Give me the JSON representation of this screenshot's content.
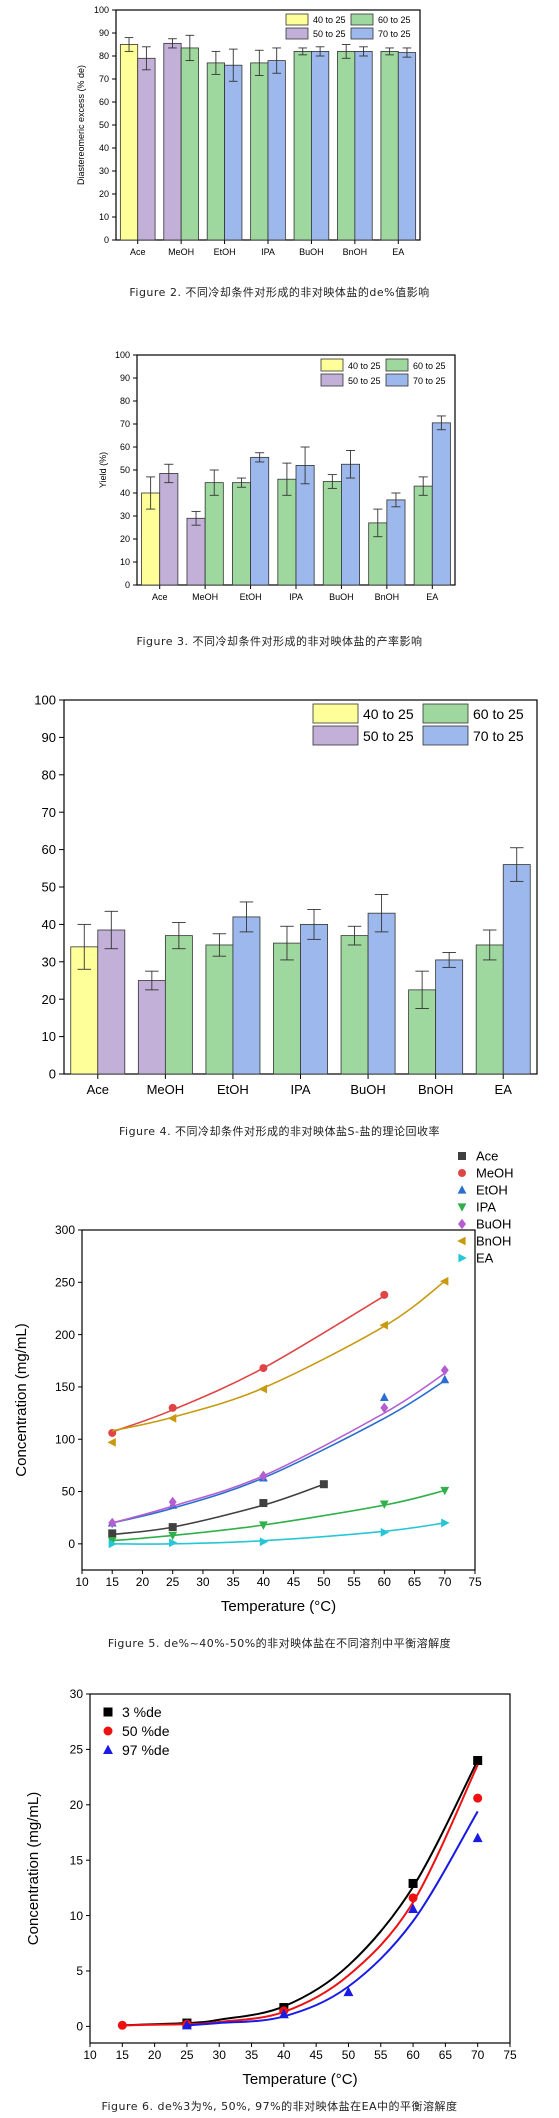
{
  "chart_data": [
    {
      "id": "fig2",
      "type": "bar",
      "title": "",
      "ylabel": "Diastereomeric excess (% de)",
      "xlabel": "",
      "ylim": [
        0,
        100
      ],
      "yticks": [
        0,
        10,
        20,
        30,
        40,
        50,
        60,
        70,
        80,
        90,
        100
      ],
      "categories": [
        "Ace",
        "MeOH",
        "EtOH",
        "IPA",
        "BuOH",
        "BnOH",
        "EA"
      ],
      "legend_location": "top-right",
      "series": [
        {
          "name": "40 to 25",
          "color": "#ffff99",
          "values": [
            85,
            null,
            null,
            null,
            null,
            null,
            null
          ],
          "errors": [
            3,
            null,
            null,
            null,
            null,
            null,
            null
          ]
        },
        {
          "name": "50 to 25",
          "color": "#c2b0d8",
          "values": [
            79,
            85.5,
            null,
            null,
            null,
            null,
            null
          ],
          "errors": [
            5,
            2,
            null,
            null,
            null,
            null,
            null
          ]
        },
        {
          "name": "60 to 25",
          "color": "#9fd89f",
          "values": [
            null,
            83.5,
            77,
            77,
            82,
            82,
            82
          ],
          "errors": [
            null,
            5.5,
            5,
            5.5,
            1.5,
            3,
            1.5
          ]
        },
        {
          "name": "70 to 25",
          "color": "#9db8ec",
          "values": [
            null,
            null,
            76,
            78,
            82,
            82,
            81.5
          ],
          "errors": [
            null,
            null,
            7,
            5.5,
            2,
            2,
            2
          ]
        }
      ],
      "caption": "Figure 2. 不同冷却条件对形成的非对映体盐的de%值影响"
    },
    {
      "id": "fig3",
      "type": "bar",
      "title": "",
      "ylabel": "Yield (%)",
      "xlabel": "",
      "ylim": [
        0,
        100
      ],
      "yticks": [
        0,
        10,
        20,
        30,
        40,
        50,
        60,
        70,
        80,
        90,
        100
      ],
      "categories": [
        "Ace",
        "MeOH",
        "EtOH",
        "IPA",
        "BuOH",
        "BnOH",
        "EA"
      ],
      "legend_location": "top-right",
      "series": [
        {
          "name": "40 to 25",
          "color": "#ffff99",
          "values": [
            40,
            null,
            null,
            null,
            null,
            null,
            null
          ],
          "errors": [
            7,
            null,
            null,
            null,
            null,
            null,
            null
          ]
        },
        {
          "name": "50 to 25",
          "color": "#c2b0d8",
          "values": [
            48.5,
            29,
            null,
            null,
            null,
            null,
            null
          ],
          "errors": [
            4,
            3,
            null,
            null,
            null,
            null,
            null
          ]
        },
        {
          "name": "60 to 25",
          "color": "#9fd89f",
          "values": [
            null,
            44.5,
            44.5,
            46,
            45,
            27,
            43
          ],
          "errors": [
            null,
            5.5,
            2,
            7,
            3,
            6,
            4
          ]
        },
        {
          "name": "70 to 25",
          "color": "#9db8ec",
          "values": [
            null,
            null,
            55.5,
            52,
            52.5,
            37,
            70.5
          ],
          "errors": [
            null,
            null,
            2,
            8,
            6,
            3,
            3
          ]
        }
      ],
      "caption": "Figure 3. 不同冷却条件对形成的非对映体盐的产率影响"
    },
    {
      "id": "fig4",
      "type": "bar",
      "title": "",
      "ylabel": "",
      "xlabel": "",
      "ylim": [
        0,
        100
      ],
      "yticks": [
        0,
        10,
        20,
        30,
        40,
        50,
        60,
        70,
        80,
        90,
        100
      ],
      "categories": [
        "Ace",
        "MeOH",
        "EtOH",
        "IPA",
        "BuOH",
        "BnOH",
        "EA"
      ],
      "legend_location": "top-right",
      "series": [
        {
          "name": "40 to 25",
          "color": "#ffff99",
          "values": [
            34,
            null,
            null,
            null,
            null,
            null,
            null
          ],
          "errors": [
            6,
            null,
            null,
            null,
            null,
            null,
            null
          ]
        },
        {
          "name": "50 to 25",
          "color": "#c2b0d8",
          "values": [
            38.5,
            25,
            null,
            null,
            null,
            null,
            null
          ],
          "errors": [
            5,
            2.5,
            null,
            null,
            null,
            null,
            null
          ]
        },
        {
          "name": "60 to 25",
          "color": "#9fd89f",
          "values": [
            null,
            37,
            34.5,
            35,
            37,
            22.5,
            34.5
          ],
          "errors": [
            null,
            3.5,
            3,
            4.5,
            2.5,
            5,
            4
          ]
        },
        {
          "name": "70 to 25",
          "color": "#9db8ec",
          "values": [
            null,
            null,
            42,
            40,
            43,
            30.5,
            56
          ],
          "errors": [
            null,
            null,
            4,
            4,
            5,
            2,
            4.5
          ]
        }
      ],
      "caption": "Figure 4. 不同冷却条件对形成的非对映体盐S-盐的理论回收率"
    },
    {
      "id": "fig5",
      "type": "scatter",
      "title": "",
      "xlabel": "Temperature (°C)",
      "ylabel": "Concentration (mg/mL)",
      "xlim": [
        10,
        75
      ],
      "ylim": [
        -25,
        300
      ],
      "xticks": [
        10,
        15,
        20,
        25,
        30,
        35,
        40,
        45,
        50,
        55,
        60,
        65,
        70,
        75
      ],
      "yticks": [
        0,
        50,
        100,
        150,
        200,
        250,
        300
      ],
      "legend_location": "outside-top-right",
      "series": [
        {
          "name": "Ace",
          "marker": "square",
          "color": "#404040",
          "x": [
            15,
            25,
            40,
            50
          ],
          "y": [
            10,
            16,
            39,
            57
          ],
          "fit": [
            [
              15,
              9
            ],
            [
              25,
              16
            ],
            [
              40,
              37
            ],
            [
              50,
              57
            ]
          ]
        },
        {
          "name": "MeOH",
          "marker": "circle",
          "color": "#e04545",
          "x": [
            15,
            25,
            40,
            60
          ],
          "y": [
            106,
            130,
            168,
            238
          ],
          "fit": [
            [
              15,
              107
            ],
            [
              25,
              128
            ],
            [
              40,
              168
            ],
            [
              60,
              237
            ]
          ]
        },
        {
          "name": "EtOH",
          "marker": "triangle-up",
          "color": "#2a6fcf",
          "x": [
            15,
            25,
            40,
            60,
            70
          ],
          "y": [
            20,
            37,
            63,
            140,
            157
          ],
          "fit": [
            [
              15,
              20
            ],
            [
              25,
              34
            ],
            [
              40,
              63
            ],
            [
              60,
              120
            ],
            [
              70,
              156
            ]
          ]
        },
        {
          "name": "IPA",
          "marker": "triangle-down",
          "color": "#30b04a",
          "x": [
            15,
            25,
            40,
            60,
            70
          ],
          "y": [
            3,
            8,
            18,
            38,
            51
          ],
          "fit": [
            [
              15,
              3
            ],
            [
              25,
              8
            ],
            [
              40,
              18
            ],
            [
              60,
              37
            ],
            [
              70,
              51
            ]
          ]
        },
        {
          "name": "BuOH",
          "marker": "diamond",
          "color": "#b45fd1",
          "x": [
            15,
            25,
            40,
            60,
            70
          ],
          "y": [
            20,
            40,
            65,
            130,
            166
          ],
          "fit": [
            [
              15,
              20
            ],
            [
              25,
              36
            ],
            [
              40,
              65
            ],
            [
              60,
              125
            ],
            [
              70,
              163
            ]
          ]
        },
        {
          "name": "BnOH",
          "marker": "triangle-left",
          "color": "#c79a10",
          "x": [
            15,
            25,
            40,
            60,
            70
          ],
          "y": [
            97,
            120,
            148,
            209,
            251
          ],
          "fit": [
            [
              15,
              108
            ],
            [
              25,
              121
            ],
            [
              40,
              149
            ],
            [
              60,
              208
            ],
            [
              70,
              251
            ]
          ]
        },
        {
          "name": "EA",
          "marker": "triangle-right",
          "color": "#25c7d6",
          "x": [
            15,
            25,
            40,
            60,
            70
          ],
          "y": [
            0,
            1,
            2,
            11,
            20
          ],
          "fit": [
            [
              15,
              0
            ],
            [
              25,
              0
            ],
            [
              40,
              3
            ],
            [
              60,
              12
            ],
            [
              70,
              20
            ]
          ]
        }
      ],
      "caption": "Figure 5. de%~40%-50%的非对映体盐在不同溶剂中平衡溶解度"
    },
    {
      "id": "fig6",
      "type": "scatter",
      "title": "",
      "xlabel": "Temperature (°C)",
      "ylabel": "Concentration (mg/mL)",
      "xlim": [
        10,
        75
      ],
      "ylim": [
        -1.5,
        30
      ],
      "xticks": [
        10,
        15,
        20,
        25,
        30,
        35,
        40,
        45,
        50,
        55,
        60,
        65,
        70,
        75
      ],
      "yticks": [
        0,
        5,
        10,
        15,
        20,
        25,
        30
      ],
      "legend_location": "top-left",
      "series": [
        {
          "name": "3 %de",
          "marker": "square",
          "color": "#000000",
          "x": [
            25,
            40,
            60,
            70
          ],
          "y": [
            0.3,
            1.7,
            12.9,
            24
          ],
          "fit": [
            [
              15,
              0.1
            ],
            [
              25,
              0.3
            ],
            [
              30,
              0.6
            ],
            [
              40,
              1.8
            ],
            [
              50,
              5.5
            ],
            [
              60,
              12.6
            ],
            [
              70,
              24
            ]
          ]
        },
        {
          "name": "50 %de",
          "marker": "circle",
          "color": "#ee1111",
          "x": [
            15,
            25,
            40,
            60,
            70
          ],
          "y": [
            0.1,
            0.2,
            1.4,
            11.6,
            20.6
          ],
          "fit": [
            [
              15,
              0.1
            ],
            [
              25,
              0.2
            ],
            [
              30,
              0.4
            ],
            [
              40,
              1.3
            ],
            [
              50,
              4.6
            ],
            [
              60,
              11.2
            ],
            [
              70,
              23.6
            ]
          ]
        },
        {
          "name": "97 %de",
          "marker": "triangle-up",
          "color": "#1a1ae6",
          "x": [
            25,
            40,
            50,
            60,
            70
          ],
          "y": [
            0.1,
            1.1,
            3.1,
            10.6,
            17
          ],
          "fit": [
            [
              25,
              0.1
            ],
            [
              30,
              0.3
            ],
            [
              40,
              0.9
            ],
            [
              50,
              3.6
            ],
            [
              60,
              9.5
            ],
            [
              70,
              19.4
            ]
          ]
        }
      ],
      "caption": "Figure 6. de%3为%, 50%, 97%的非对映体盐在EA中的平衡溶解度"
    }
  ]
}
